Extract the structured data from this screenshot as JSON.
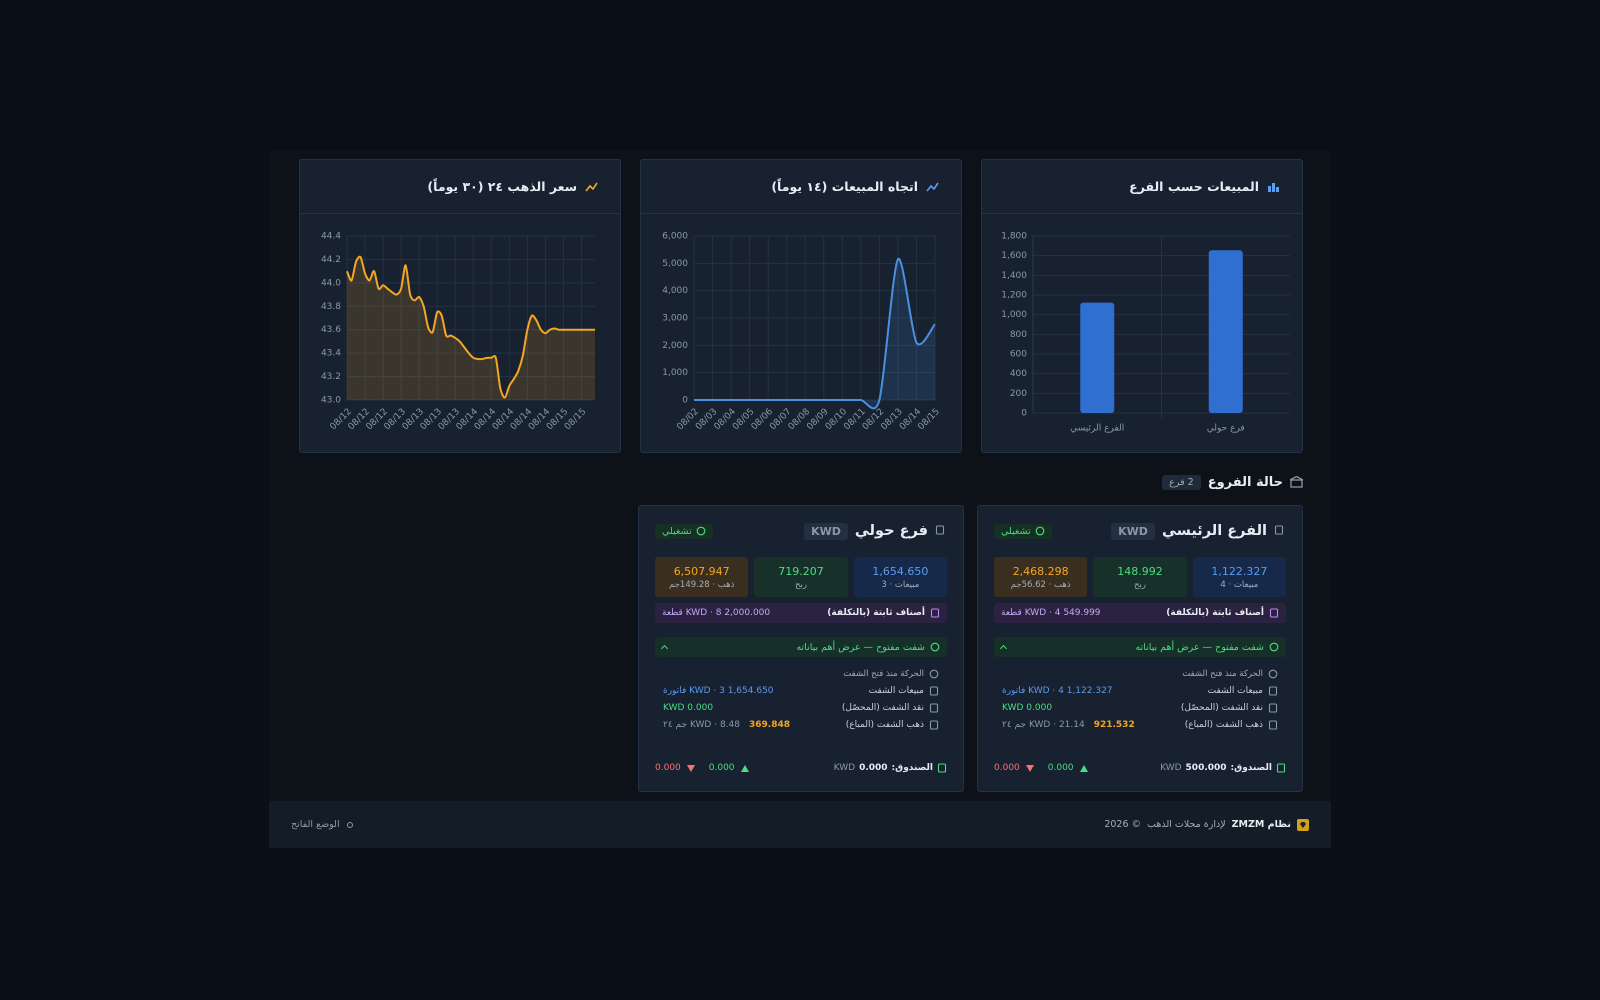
{
  "chart_data": [
    {
      "type": "bar",
      "title": "المبيعات حسب الفرع",
      "categories": [
        "الفرع الرئيسي",
        "فرع حولي"
      ],
      "values": [
        1122.327,
        1654.65
      ],
      "color": "#2f6fd0",
      "ylim": [
        0,
        1800
      ],
      "yticks": [
        0,
        200,
        400,
        600,
        800,
        {
          "value": 1000,
          "label": "1,000"
        },
        {
          "value": 1200,
          "label": "1,200"
        },
        {
          "value": 1400,
          "label": "1,400"
        },
        {
          "value": 1600,
          "label": "1,600"
        },
        {
          "value": 1800,
          "label": "1,800"
        }
      ],
      "grid": true
    },
    {
      "type": "line",
      "title": "اتجاه المبيعات (١٤ يوماً)",
      "categories": [
        "08/02",
        "08/03",
        "08/04",
        "08/05",
        "08/06",
        "08/07",
        "08/08",
        "08/09",
        "08/10",
        "08/11",
        "08/12",
        "08/13",
        "08/14",
        "08/15"
      ],
      "values": [
        0,
        0,
        0,
        0,
        0,
        0,
        0,
        0,
        0,
        0,
        0,
        5150,
        2100,
        2777
      ],
      "color": "#4a90e2",
      "area": true,
      "ylim": [
        0,
        6000
      ],
      "yticks": [
        0,
        {
          "value": 1000,
          "label": "1,000"
        },
        {
          "value": 2000,
          "label": "2,000"
        },
        {
          "value": 3000,
          "label": "3,000"
        },
        {
          "value": 4000,
          "label": "4,000"
        },
        {
          "value": 5000,
          "label": "5,000"
        },
        {
          "value": 6000,
          "label": "6,000"
        }
      ],
      "grid": true
    },
    {
      "type": "line",
      "title": "سعر الذهب ٢٤ (٣٠ يوماً)",
      "categories": [
        "08/12",
        null,
        null,
        null,
        "08/12",
        null,
        null,
        null,
        "08/12",
        null,
        null,
        null,
        "08/13",
        null,
        null,
        null,
        "08/13",
        null,
        null,
        null,
        "08/13",
        null,
        null,
        null,
        "08/13",
        null,
        null,
        null,
        "08/14",
        null,
        null,
        null,
        "08/14",
        null,
        null,
        null,
        "08/14",
        null,
        null,
        null,
        "08/14",
        null,
        null,
        null,
        "08/14",
        null,
        null,
        null,
        "08/15",
        null,
        null,
        null,
        "08/15",
        null,
        null,
        null
      ],
      "values": [
        44.1,
        44.02,
        44.18,
        44.22,
        44.08,
        44.02,
        44.1,
        43.95,
        43.98,
        43.95,
        43.92,
        43.9,
        43.95,
        44.15,
        43.9,
        43.85,
        43.88,
        43.8,
        43.62,
        43.58,
        43.75,
        43.72,
        43.55,
        43.55,
        43.53,
        43.5,
        43.45,
        43.4,
        43.36,
        43.35,
        43.35,
        43.36,
        43.36,
        43.36,
        43.1,
        43.02,
        43.12,
        43.18,
        43.25,
        43.38,
        43.6,
        43.72,
        43.68,
        43.6,
        43.57,
        43.6,
        43.61,
        43.6,
        43.6,
        43.6,
        43.6,
        43.6,
        43.6,
        43.6,
        43.6,
        43.6
      ],
      "color": "#f5a623",
      "area": true,
      "ylim": [
        43,
        44.4
      ],
      "yticks": [
        {
          "value": 43,
          "label": "43.0"
        },
        43.2,
        43.4,
        43.6,
        43.8,
        {
          "value": 44,
          "label": "44.0"
        },
        44.2,
        44.4
      ],
      "grid": true
    }
  ],
  "section": {
    "title": "حالة الفروع",
    "badge": "2 فرع"
  },
  "branches": [
    {
      "name": "الفرع الرئيسي",
      "currency": "KWD",
      "status": "تشغيلي",
      "stats": [
        {
          "value": "1,122.327",
          "label": "مبيعات · 4"
        },
        {
          "value": "148.992",
          "label": "ربح"
        },
        {
          "value": "2,468.298",
          "label": "ذهب · 56.62جم"
        }
      ],
      "fixed": {
        "label": "أصناف ثابتة (بالتكلفة)",
        "value": "549.999 KWD · 4 قطعة"
      },
      "shift": "شفت مفتوح — عرض أهم بياناته",
      "details": {
        "title": "الحركة منذ فتح الشفت",
        "rows": [
          {
            "label": "مبيعات الشفت",
            "value": "1,122.327 KWD · 4 فاتورة"
          },
          {
            "label": "نقد الشفت (المحصّل)",
            "value": "0.000 KWD"
          },
          {
            "label": "ذهب الشفت (المباع)",
            "amount": "921.532",
            "value": "KWD · 21.14 جم ٢٤"
          }
        ]
      },
      "cashbox": {
        "label": "الصندوق:",
        "value": "500.000",
        "currency": "KWD"
      },
      "in": "0.000",
      "out": "0.000"
    },
    {
      "name": "فرع حولي",
      "currency": "KWD",
      "status": "تشغيلي",
      "stats": [
        {
          "value": "1,654.650",
          "label": "مبيعات · 3"
        },
        {
          "value": "719.207",
          "label": "ربح"
        },
        {
          "value": "6,507.947",
          "label": "ذهب · 149.28جم"
        }
      ],
      "fixed": {
        "label": "أصناف ثابتة (بالتكلفة)",
        "value": "2,000.000 KWD · 8 قطعة"
      },
      "shift": "شفت مفتوح — عرض أهم بياناته",
      "details": {
        "title": "الحركة منذ فتح الشفت",
        "rows": [
          {
            "label": "مبيعات الشفت",
            "value": "1,654.650 KWD · 3 فاتورة"
          },
          {
            "label": "نقد الشفت (المحصّل)",
            "value": "0.000 KWD"
          },
          {
            "label": "ذهب الشفت (المباع)",
            "amount": "369.848",
            "value": "KWD · 8.48 جم ٢٤"
          }
        ]
      },
      "cashbox": {
        "label": "الصندوق:",
        "value": "0.000",
        "currency": "KWD"
      },
      "in": "0.000",
      "out": "0.000"
    }
  ],
  "footer": {
    "brand": "نظام ZMZM",
    "tagline": "لإدارة محلات الذهب",
    "copyright": "© 2026",
    "theme": "الوضع الفاتح"
  }
}
